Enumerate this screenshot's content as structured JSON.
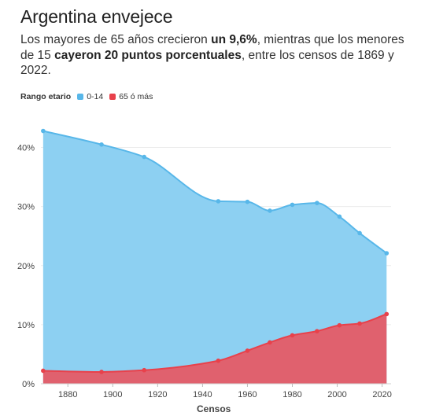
{
  "header": {
    "title": "Argentina envejece",
    "subtitle_parts": [
      {
        "text": "Los mayores de 65 años crecieron ",
        "bold": false
      },
      {
        "text": "un 9,6%",
        "bold": true
      },
      {
        "text": ", mientras que los menores de 15 ",
        "bold": false
      },
      {
        "text": "cayeron 20 puntos porcentuales",
        "bold": true
      },
      {
        "text": ", entre los censos de 1869 y 2022.",
        "bold": false
      }
    ]
  },
  "legend": {
    "title": "Rango etario",
    "items": [
      {
        "label": "0-14",
        "color": "#58b7e9"
      },
      {
        "label": "65 ó más",
        "color": "#e8414b"
      }
    ]
  },
  "chart_data": {
    "type": "area",
    "xlabel": "Censos",
    "ylabel": "",
    "xlim": [
      1868,
      2024
    ],
    "ylim": [
      0,
      45
    ],
    "xticks": [
      1880,
      1900,
      1920,
      1940,
      1960,
      1980,
      2000,
      2020
    ],
    "yticks": [
      0,
      10,
      20,
      30,
      40
    ],
    "ytick_labels": [
      "0%",
      "10%",
      "20%",
      "30%",
      "40%"
    ],
    "grid": true,
    "x": [
      1869,
      1895,
      1914,
      1947,
      1960,
      1970,
      1980,
      1991,
      2001,
      2010,
      2022
    ],
    "series": [
      {
        "name": "0-14",
        "color": "#58b7e9",
        "fill": "#8dd0f2",
        "values": [
          42.8,
          40.5,
          38.4,
          30.9,
          30.8,
          29.3,
          30.3,
          30.6,
          28.3,
          25.5,
          22.1
        ]
      },
      {
        "name": "65 ó más",
        "color": "#e8414b",
        "fill": "#e0616e",
        "values": [
          2.2,
          2.0,
          2.3,
          3.9,
          5.6,
          7.0,
          8.2,
          8.9,
          9.9,
          10.2,
          11.8
        ]
      }
    ]
  }
}
